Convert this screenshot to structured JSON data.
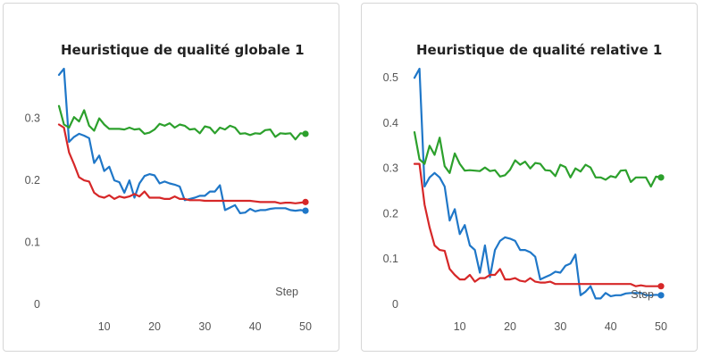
{
  "chart_data": [
    {
      "type": "line",
      "title": "Heuristique de qualité globale 1",
      "xlabel": "Step",
      "ylabel": "",
      "xlim": [
        1,
        50
      ],
      "ylim": [
        0,
        0.38
      ],
      "xticks": [
        "10",
        "20",
        "30",
        "40",
        "50"
      ],
      "yticks": [
        "0",
        "0.1",
        "0.2",
        "0.3"
      ],
      "grid": false,
      "series": [
        {
          "color": "#1f77c8",
          "x": [
            1,
            2,
            3,
            4,
            5,
            6,
            7,
            8,
            9,
            10,
            11,
            12,
            13,
            14,
            15,
            16,
            17,
            18,
            19,
            20,
            21,
            22,
            23,
            24,
            25,
            26,
            27,
            28,
            29,
            30,
            31,
            32,
            33,
            34,
            35,
            36,
            37,
            38,
            39,
            40,
            41,
            42,
            43,
            44,
            45,
            46,
            47,
            48,
            49,
            50
          ],
          "y": [
            0.37,
            0.38,
            0.262,
            0.27,
            0.275,
            0.272,
            0.268,
            0.228,
            0.24,
            0.215,
            0.222,
            0.2,
            0.197,
            0.18,
            0.2,
            0.172,
            0.195,
            0.207,
            0.21,
            0.208,
            0.195,
            0.198,
            0.195,
            0.193,
            0.19,
            0.168,
            0.17,
            0.172,
            0.175,
            0.175,
            0.182,
            0.182,
            0.192,
            0.152,
            0.156,
            0.16,
            0.147,
            0.148,
            0.154,
            0.15,
            0.152,
            0.152,
            0.154,
            0.155,
            0.155,
            0.155,
            0.152,
            0.151,
            0.152,
            0.151
          ]
        },
        {
          "color": "#2ca02c",
          "x": [
            1,
            2,
            3,
            4,
            5,
            6,
            7,
            8,
            9,
            10,
            11,
            12,
            13,
            14,
            15,
            16,
            17,
            18,
            19,
            20,
            21,
            22,
            23,
            24,
            25,
            26,
            27,
            28,
            29,
            30,
            31,
            32,
            33,
            34,
            35,
            36,
            37,
            38,
            39,
            40,
            41,
            42,
            43,
            44,
            45,
            46,
            47,
            48,
            49,
            50
          ],
          "y": [
            0.32,
            0.29,
            0.285,
            0.302,
            0.295,
            0.313,
            0.288,
            0.28,
            0.3,
            0.29,
            0.283,
            0.283,
            0.283,
            0.282,
            0.285,
            0.282,
            0.283,
            0.275,
            0.277,
            0.282,
            0.291,
            0.288,
            0.292,
            0.285,
            0.29,
            0.288,
            0.282,
            0.283,
            0.276,
            0.287,
            0.285,
            0.276,
            0.285,
            0.282,
            0.288,
            0.285,
            0.275,
            0.276,
            0.273,
            0.276,
            0.275,
            0.281,
            0.282,
            0.27,
            0.276,
            0.275,
            0.276,
            0.266,
            0.276,
            0.275
          ]
        },
        {
          "color": "#d62728",
          "x": [
            1,
            2,
            3,
            4,
            5,
            6,
            7,
            8,
            9,
            10,
            11,
            12,
            13,
            14,
            15,
            16,
            17,
            18,
            19,
            20,
            21,
            22,
            23,
            24,
            25,
            26,
            27,
            28,
            29,
            30,
            31,
            32,
            33,
            34,
            35,
            36,
            37,
            38,
            39,
            40,
            41,
            42,
            43,
            44,
            45,
            46,
            47,
            48,
            49,
            50
          ],
          "y": [
            0.29,
            0.285,
            0.245,
            0.226,
            0.205,
            0.2,
            0.198,
            0.18,
            0.174,
            0.172,
            0.176,
            0.17,
            0.174,
            0.172,
            0.174,
            0.178,
            0.174,
            0.182,
            0.172,
            0.172,
            0.172,
            0.17,
            0.17,
            0.174,
            0.17,
            0.17,
            0.168,
            0.168,
            0.168,
            0.167,
            0.167,
            0.167,
            0.167,
            0.167,
            0.167,
            0.167,
            0.167,
            0.167,
            0.167,
            0.166,
            0.165,
            0.165,
            0.165,
            0.165,
            0.163,
            0.164,
            0.164,
            0.163,
            0.164,
            0.165
          ]
        }
      ]
    },
    {
      "type": "line",
      "title": "Heuristique de qualité relative 1",
      "xlabel": "Step",
      "ylabel": "",
      "xlim": [
        1,
        50
      ],
      "ylim": [
        0,
        0.52
      ],
      "xticks": [
        "10",
        "20",
        "30",
        "40",
        "50"
      ],
      "yticks": [
        "0",
        "0.1",
        "0.2",
        "0.3",
        "0.4",
        "0.5"
      ],
      "grid": false,
      "series": [
        {
          "color": "#1f77c8",
          "x": [
            1,
            2,
            3,
            4,
            5,
            6,
            7,
            8,
            9,
            10,
            11,
            12,
            13,
            14,
            15,
            16,
            17,
            18,
            19,
            20,
            21,
            22,
            23,
            24,
            25,
            26,
            27,
            28,
            29,
            30,
            31,
            32,
            33,
            34,
            35,
            36,
            37,
            38,
            39,
            40,
            41,
            42,
            43,
            44,
            45,
            46,
            47,
            48,
            49,
            50
          ],
          "y": [
            0.5,
            0.52,
            0.26,
            0.28,
            0.29,
            0.28,
            0.26,
            0.185,
            0.21,
            0.155,
            0.175,
            0.13,
            0.12,
            0.07,
            0.13,
            0.06,
            0.12,
            0.14,
            0.148,
            0.145,
            0.14,
            0.12,
            0.12,
            0.115,
            0.105,
            0.055,
            0.06,
            0.065,
            0.072,
            0.07,
            0.085,
            0.09,
            0.11,
            0.02,
            0.028,
            0.04,
            0.013,
            0.013,
            0.025,
            0.018,
            0.02,
            0.02,
            0.024,
            0.025,
            0.025,
            0.025,
            0.02,
            0.02,
            0.021,
            0.02
          ]
        },
        {
          "color": "#2ca02c",
          "x": [
            1,
            2,
            3,
            4,
            5,
            6,
            7,
            8,
            9,
            10,
            11,
            12,
            13,
            14,
            15,
            16,
            17,
            18,
            19,
            20,
            21,
            22,
            23,
            24,
            25,
            26,
            27,
            28,
            29,
            30,
            31,
            32,
            33,
            34,
            35,
            36,
            37,
            38,
            39,
            40,
            41,
            42,
            43,
            44,
            45,
            46,
            47,
            48,
            49,
            50
          ],
          "y": [
            0.38,
            0.32,
            0.31,
            0.35,
            0.33,
            0.368,
            0.305,
            0.29,
            0.333,
            0.31,
            0.295,
            0.296,
            0.295,
            0.294,
            0.302,
            0.294,
            0.296,
            0.282,
            0.285,
            0.297,
            0.318,
            0.308,
            0.315,
            0.3,
            0.312,
            0.31,
            0.296,
            0.295,
            0.283,
            0.308,
            0.303,
            0.28,
            0.3,
            0.293,
            0.308,
            0.302,
            0.28,
            0.28,
            0.275,
            0.283,
            0.28,
            0.295,
            0.296,
            0.27,
            0.28,
            0.28,
            0.28,
            0.26,
            0.282,
            0.28
          ]
        },
        {
          "color": "#d62728",
          "x": [
            1,
            2,
            3,
            4,
            5,
            6,
            7,
            8,
            9,
            10,
            11,
            12,
            13,
            14,
            15,
            16,
            17,
            18,
            19,
            20,
            21,
            22,
            23,
            24,
            25,
            26,
            27,
            28,
            29,
            30,
            31,
            32,
            33,
            34,
            35,
            36,
            37,
            38,
            39,
            40,
            41,
            42,
            43,
            44,
            45,
            46,
            47,
            48,
            49,
            50
          ],
          "y": [
            0.31,
            0.31,
            0.22,
            0.17,
            0.13,
            0.12,
            0.118,
            0.078,
            0.065,
            0.055,
            0.055,
            0.065,
            0.05,
            0.058,
            0.058,
            0.065,
            0.065,
            0.078,
            0.055,
            0.055,
            0.058,
            0.052,
            0.05,
            0.058,
            0.05,
            0.048,
            0.048,
            0.05,
            0.045,
            0.045,
            0.045,
            0.045,
            0.045,
            0.045,
            0.045,
            0.045,
            0.045,
            0.045,
            0.045,
            0.045,
            0.045,
            0.045,
            0.045,
            0.045,
            0.04,
            0.042,
            0.04,
            0.04,
            0.04,
            0.04
          ]
        }
      ]
    }
  ]
}
